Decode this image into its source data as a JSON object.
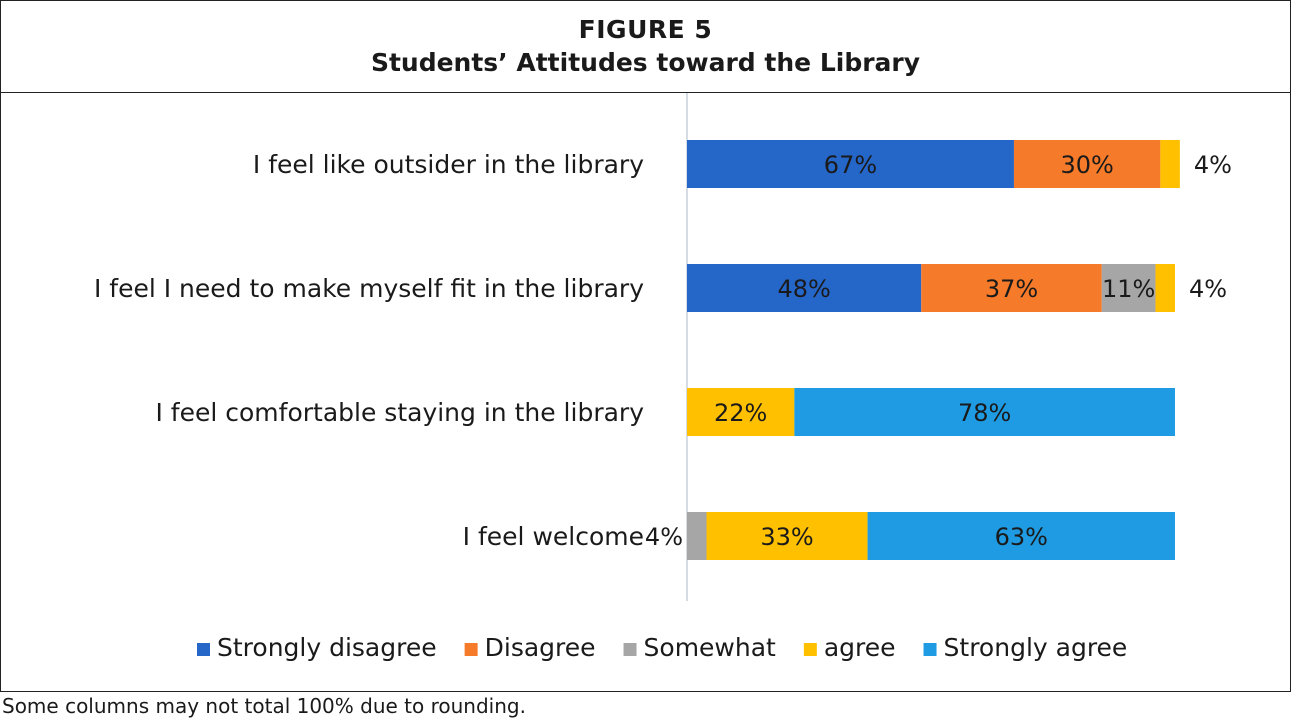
{
  "figure": {
    "number": "FIGURE 5",
    "title": "Students’ Attitudes toward the Library"
  },
  "footnote": "Some columns may not total 100% due to rounding.",
  "colors": {
    "strongly_disagree": "#2566c9",
    "disagree": "#f57a2a",
    "somewhat": "#a6a6a6",
    "agree": "#ffc000",
    "strongly_agree": "#1e9be3"
  },
  "chart_data": {
    "type": "bar",
    "orientation": "horizontal",
    "stacked": true,
    "xlim": [
      0,
      100
    ],
    "grid": false,
    "legend_position": "bottom",
    "categories": [
      "I feel like outsider in the library",
      "I feel I need to make myself fit in the library",
      "I feel comfortable staying in the library",
      "I feel welcome"
    ],
    "series": [
      {
        "name": "Strongly disagree",
        "color": "#2566c9",
        "values": [
          67,
          48,
          0,
          0
        ],
        "labels": [
          "67%",
          "48%",
          "",
          ""
        ]
      },
      {
        "name": "Disagree",
        "color": "#f57a2a",
        "values": [
          30,
          37,
          0,
          0
        ],
        "labels": [
          "30%",
          "37%",
          "",
          ""
        ]
      },
      {
        "name": "Somewhat",
        "color": "#a6a6a6",
        "values": [
          0,
          11,
          0,
          4
        ],
        "labels": [
          "",
          "11%",
          "",
          "4%"
        ]
      },
      {
        "name": "agree",
        "color": "#ffc000",
        "values": [
          4,
          4,
          22,
          33
        ],
        "labels": [
          "4%",
          "4%",
          "22%",
          "33%"
        ]
      },
      {
        "name": "Strongly agree",
        "color": "#1e9be3",
        "values": [
          0,
          0,
          78,
          63
        ],
        "labels": [
          "",
          "",
          "78%",
          "63%"
        ]
      }
    ]
  }
}
